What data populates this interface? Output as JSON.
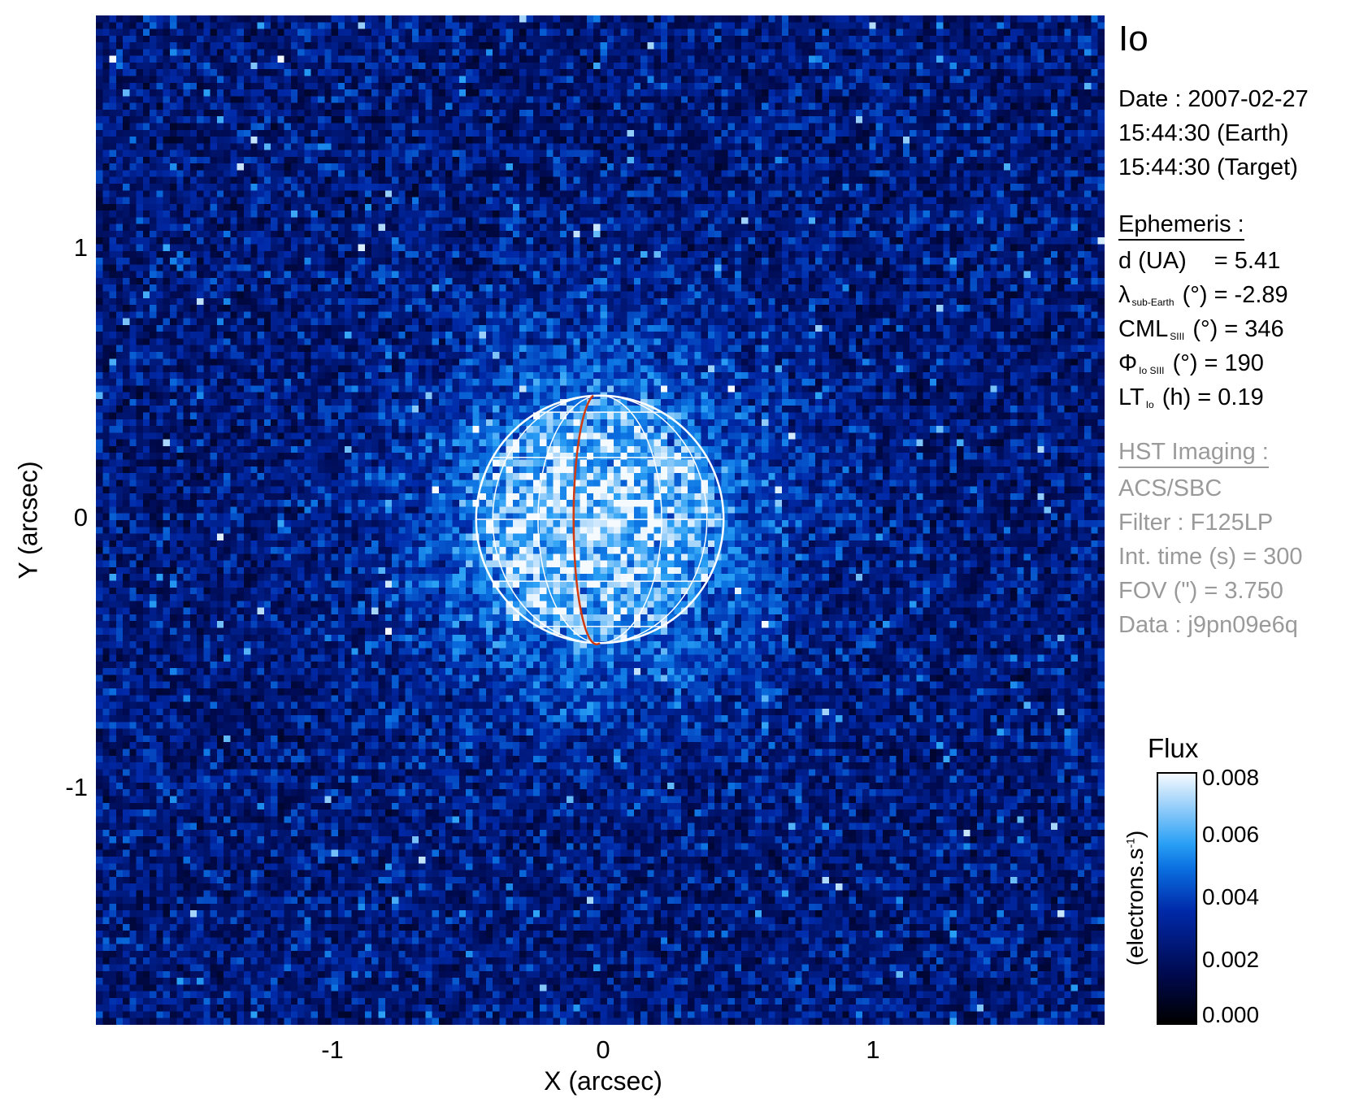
{
  "chart_data": {
    "type": "heatmap",
    "title": "Io",
    "xlabel": "X (arcsec)",
    "ylabel": "Y (arcsec)",
    "xlim": [
      -1.875,
      1.875
    ],
    "ylim": [
      -1.875,
      1.875
    ],
    "xticks": [
      "-1",
      "0",
      "1"
    ],
    "yticks": [
      "1",
      "0",
      "-1"
    ],
    "colorbar": {
      "title": "Flux",
      "unit": "(electrons.s",
      "unit_sup": "-1",
      "unit_close": ")",
      "range": [
        0.0,
        0.008
      ],
      "ticks": [
        "0.008",
        "0.006",
        "0.004",
        "0.002",
        "0.000"
      ],
      "colormap": [
        "#000000",
        "#000a50",
        "#0029a8",
        "#0a6fe0",
        "#2aa0f5",
        "#9fd2fa",
        "#f5faff"
      ]
    },
    "overlay": {
      "disk_radius_arcsec": 0.46,
      "grid_color": "#ffffff",
      "meridian_color": "#d03a10"
    }
  },
  "info": {
    "target": "Io",
    "date": "Date : 2007-02-27",
    "time_earth": "15:44:30 (Earth)",
    "time_target": "15:44:30 (Target)",
    "ephemeris_title": "Ephemeris :",
    "d_label": "d (UA)",
    "d_value": "= 5.41",
    "lambda_sym": "λ",
    "lambda_sub": "sub-Earth",
    "lambda_rest": "(°) = -2.89",
    "cml_sym": "CML",
    "cml_sub": "SIII",
    "cml_rest": "(°) = 346",
    "phi_sym": "Φ",
    "phi_sub": "Io SIII",
    "phi_rest": "(°) = 190",
    "lt_sym": "LT",
    "lt_sub": "Io",
    "lt_rest": "(h) = 0.19",
    "hst_title": "HST Imaging :",
    "instrument": "ACS/SBC",
    "filter": "Filter : F125LP",
    "int_time": "Int. time (s) = 300",
    "fov": "FOV (\") = 3.750",
    "data_id": "Data : j9pn09e6q"
  }
}
